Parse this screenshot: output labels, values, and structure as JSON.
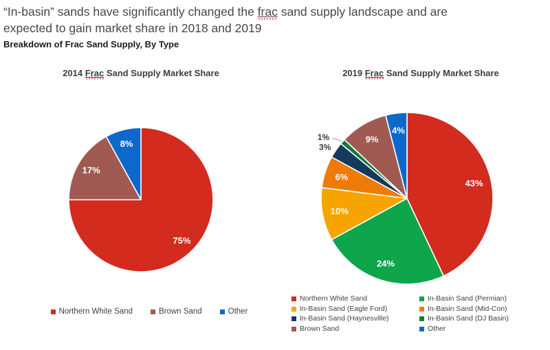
{
  "header": {
    "title_line1_pre": "“In-basin” sands have significantly changed the ",
    "title_line1_word": "frac",
    "title_line1_post": " sand supply landscape and are",
    "title_line2": "expected to gain market share in 2018 and 2019",
    "subtitle": "Breakdown of Frac Sand Supply, By Type"
  },
  "chart_data": [
    {
      "type": "pie",
      "title": "2014 Frac Sand Supply Market Share",
      "title_parts": {
        "pre": "2014 ",
        "word": "Frac",
        "post": " Sand Supply Market Share"
      },
      "start_angle": "12-oclock, clockwise",
      "slices": [
        {
          "name": "Northern White Sand",
          "value": 75,
          "label": "75%",
          "color": "#d32b1e"
        },
        {
          "name": "Brown Sand",
          "value": 17,
          "label": "17%",
          "color": "#a05a52"
        },
        {
          "name": "Other",
          "value": 8,
          "label": "8%",
          "color": "#0d68cb"
        }
      ],
      "legend_position": "bottom",
      "legend": [
        {
          "label": "Northern White Sand",
          "color": "#d32b1e"
        },
        {
          "label": "Brown Sand",
          "color": "#a05a52"
        },
        {
          "label": "Other",
          "color": "#0d68cb"
        }
      ]
    },
    {
      "type": "pie",
      "title": "2019 Frac Sand Supply Market Share",
      "title_parts": {
        "pre": "2019 ",
        "word": "Frac",
        "post": " Sand Supply Market Share"
      },
      "start_angle": "12-oclock, clockwise",
      "slices": [
        {
          "name": "Northern White Sand",
          "value": 43,
          "label": "43%",
          "color": "#d32b1e"
        },
        {
          "name": "In-Basin Sand (Permian)",
          "value": 24,
          "label": "24%",
          "color": "#0fa54a"
        },
        {
          "name": "In-Basin Sand (Eagle Ford)",
          "value": 10,
          "label": "10%",
          "color": "#f7a402"
        },
        {
          "name": "In-Basin Sand (Mid-Con)",
          "value": 6,
          "label": "6%",
          "color": "#ee7b08"
        },
        {
          "name": "In-Basin Sand (Haynesville)",
          "value": 3,
          "label": "3%",
          "color": "#16395f",
          "label_outside": true
        },
        {
          "name": "In-Basin Sand (DJ Basin)",
          "value": 1,
          "label": "1%",
          "color": "#0f7d38",
          "label_outside": true,
          "leader": true
        },
        {
          "name": "Brown Sand",
          "value": 9,
          "label": "9%",
          "color": "#a05a52"
        },
        {
          "name": "Other",
          "value": 4,
          "label": "4%",
          "color": "#0d68cb"
        }
      ],
      "legend_position": "bottom",
      "legend": [
        {
          "label": "Northern White Sand",
          "color": "#d32b1e"
        },
        {
          "label": "In-Basin Sand (Permian)",
          "color": "#0fa54a"
        },
        {
          "label": "In-Basin Sand (Eagle Ford)",
          "color": "#f7a402"
        },
        {
          "label": "In-Basin Sand (Mid-Con)",
          "color": "#ee7b08"
        },
        {
          "label": "In-Basin Sand (Haynesville)",
          "color": "#16395f"
        },
        {
          "label": "In-Basin Sand (DJ Basin)",
          "color": "#0f7d38"
        },
        {
          "label": "Brown Sand",
          "color": "#a05a52"
        },
        {
          "label": "Other",
          "color": "#0d68cb"
        }
      ]
    }
  ]
}
